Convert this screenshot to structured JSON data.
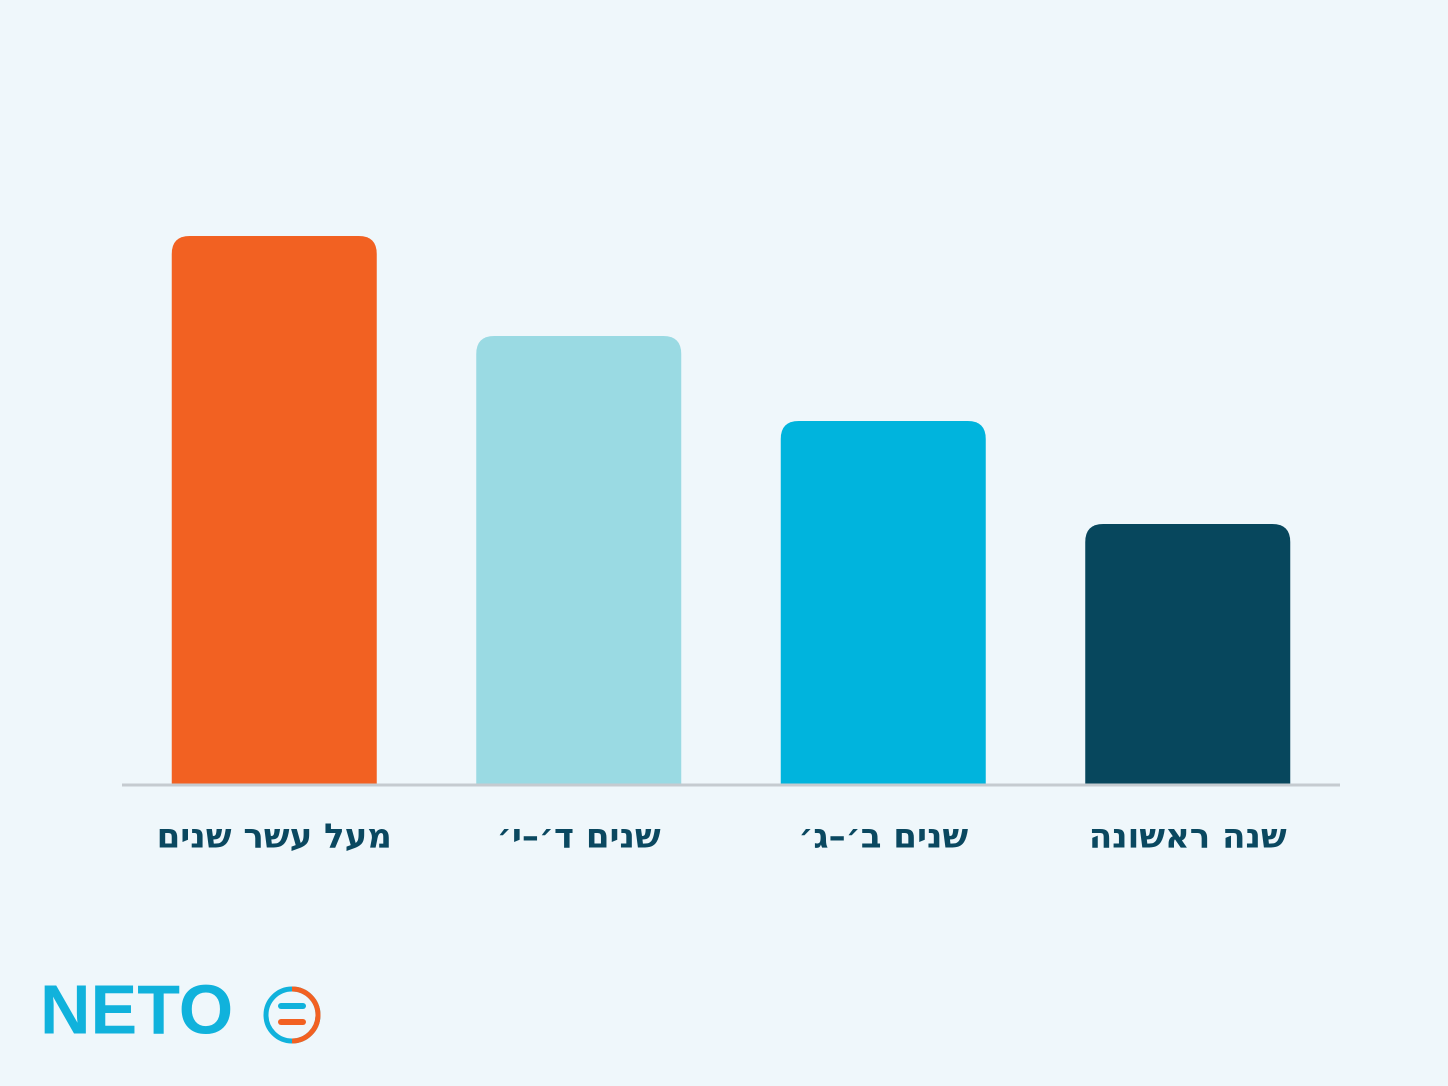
{
  "chart_data": {
    "type": "bar",
    "categories": [
      "מעל עשר שנים",
      "שנים ד׳–י׳",
      "שנים ב׳–ג׳",
      "שנה ראשונה"
    ],
    "values": [
      549,
      449,
      364,
      261
    ],
    "colors": [
      "#f26122",
      "#9adae3",
      "#00b4dd",
      "#07475d"
    ],
    "ylim": [
      0,
      600
    ]
  },
  "logo": {
    "text": "NETO"
  }
}
